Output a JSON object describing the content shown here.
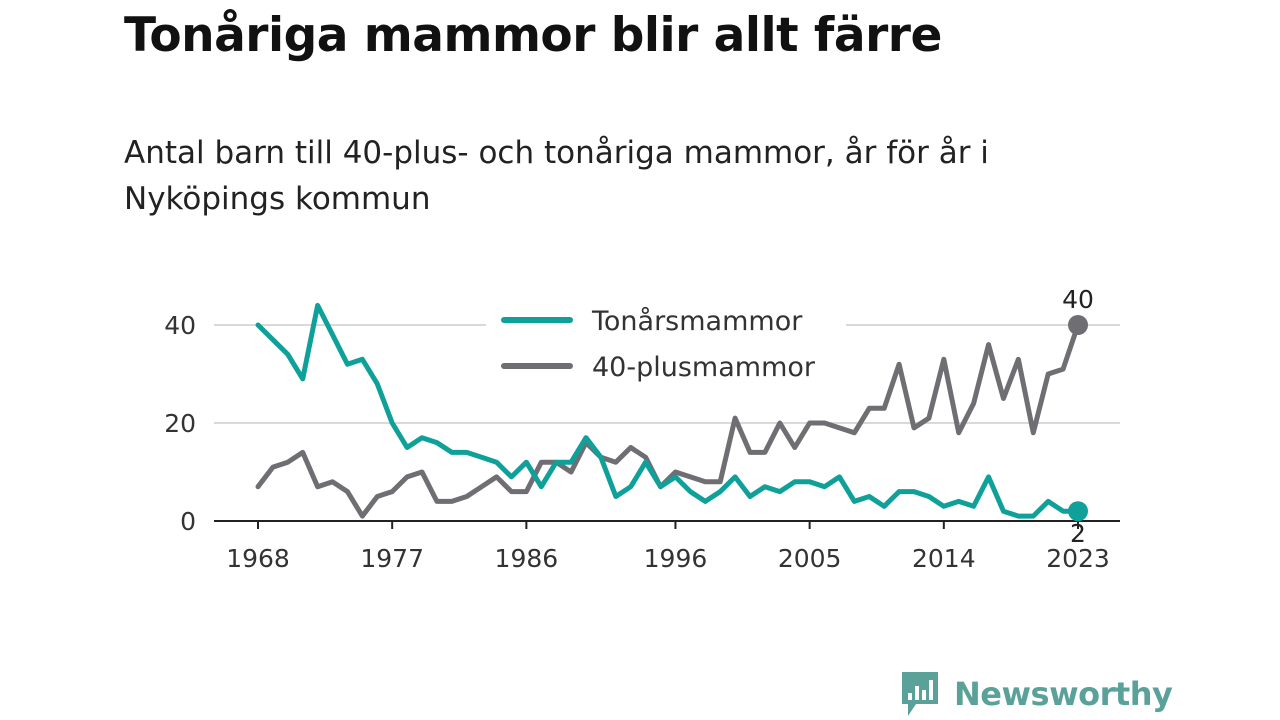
{
  "title": "Tonåriga mammor blir allt färre",
  "subtitle": "Antal barn till 40-plus- och tonåriga mammor, år för år i Nyköpings kommun",
  "brand": {
    "name": "Newsworthy",
    "icon": "newsworthy-logo-icon",
    "color": "#5aa19a"
  },
  "chart_data": {
    "type": "line",
    "title": "Tonåriga mammor blir allt färre",
    "subtitle": "Antal barn till 40-plus- och tonåriga mammor, år för år i Nyköpings kommun",
    "xlabel": "",
    "ylabel": "",
    "x": [
      1968,
      1969,
      1970,
      1971,
      1972,
      1973,
      1974,
      1975,
      1976,
      1977,
      1978,
      1979,
      1980,
      1981,
      1982,
      1983,
      1984,
      1985,
      1986,
      1987,
      1988,
      1989,
      1990,
      1991,
      1992,
      1993,
      1994,
      1995,
      1996,
      1997,
      1998,
      1999,
      2000,
      2001,
      2002,
      2003,
      2004,
      2005,
      2006,
      2007,
      2008,
      2009,
      2010,
      2011,
      2012,
      2013,
      2014,
      2015,
      2016,
      2017,
      2018,
      2019,
      2020,
      2021,
      2022,
      2023
    ],
    "x_ticks": [
      "1968",
      "1977",
      "1986",
      "1996",
      "2005",
      "2014",
      "2023"
    ],
    "y_ticks": [
      "0",
      "20",
      "40"
    ],
    "ylim": [
      0,
      44
    ],
    "grid": true,
    "legend_position": "top-center",
    "series": [
      {
        "name": "Tonårsmammor",
        "color": "#0fa199",
        "values": [
          40,
          37,
          34,
          29,
          44,
          38,
          32,
          33,
          28,
          20,
          15,
          17,
          16,
          14,
          14,
          13,
          12,
          9,
          12,
          7,
          12,
          12,
          17,
          13,
          5,
          7,
          12,
          7,
          9,
          6,
          4,
          6,
          9,
          5,
          7,
          6,
          8,
          8,
          7,
          9,
          4,
          5,
          3,
          6,
          6,
          5,
          3,
          4,
          3,
          9,
          2,
          1,
          1,
          4,
          2,
          2
        ],
        "end_label": "2"
      },
      {
        "name": "40-plusmammor",
        "color": "#6f6e73",
        "values": [
          7,
          11,
          12,
          14,
          7,
          8,
          6,
          1,
          5,
          6,
          9,
          10,
          4,
          4,
          5,
          7,
          9,
          6,
          6,
          12,
          12,
          10,
          16,
          13,
          12,
          15,
          13,
          7,
          10,
          9,
          8,
          8,
          21,
          14,
          14,
          20,
          15,
          20,
          20,
          19,
          18,
          23,
          23,
          32,
          19,
          21,
          33,
          18,
          24,
          36,
          25,
          33,
          18,
          30,
          31,
          40
        ],
        "end_label": "40"
      }
    ]
  }
}
